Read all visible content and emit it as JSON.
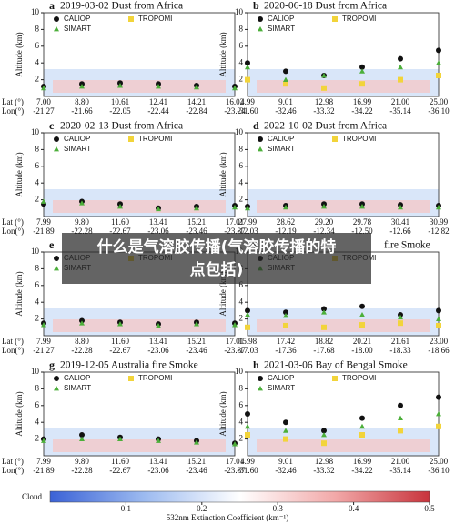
{
  "chart_data": [
    {
      "type": "scatter",
      "letter": "a",
      "title": "2019-03-02 Dust from Africa",
      "y_label": "Altitude (km)",
      "lat": [
        "7.00",
        "8.80",
        "10.61",
        "12.41",
        "14.21",
        "16.02"
      ],
      "lon": [
        "-21.27",
        "-21.66",
        "-22.05",
        "-22.44",
        "-22.84",
        "-23.24"
      ],
      "ylim": [
        0,
        10
      ],
      "yticks": [
        2,
        4,
        6,
        8,
        10
      ],
      "series": [
        {
          "name": "CALIOP",
          "color": "#111111",
          "marker": "circle",
          "values": [
            1.2,
            1.5,
            1.6,
            1.5,
            1.3,
            1.2
          ]
        },
        {
          "name": "TROPOMI",
          "color": "#f2d43a",
          "marker": "square",
          "values": [
            null,
            null,
            null,
            null,
            null,
            null
          ]
        },
        {
          "name": "SIMART",
          "color": "#4caf3a",
          "marker": "triangle",
          "values": [
            1.0,
            1.2,
            1.3,
            1.2,
            1.1,
            1.0
          ]
        }
      ]
    },
    {
      "type": "scatter",
      "letter": "b",
      "title": "2020-06-18 Dust from Africa",
      "y_label": "Altitude (km)",
      "lat": [
        "4.99",
        "9.01",
        "12.98",
        "16.99",
        "21.00",
        "25.00"
      ],
      "lon": [
        "-31.60",
        "-32.46",
        "-33.32",
        "-34.22",
        "-35.14",
        "-36.10"
      ],
      "ylim": [
        0,
        10
      ],
      "yticks": [
        2,
        4,
        6,
        8,
        10
      ],
      "series": [
        {
          "name": "CALIOP",
          "color": "#111111",
          "marker": "circle",
          "values": [
            4.0,
            3.0,
            2.5,
            3.5,
            4.5,
            5.5
          ]
        },
        {
          "name": "TROPOMI",
          "color": "#f2d43a",
          "marker": "square",
          "values": [
            2.0,
            1.5,
            1.0,
            1.5,
            2.0,
            2.5
          ]
        },
        {
          "name": "SIMART",
          "color": "#4caf3a",
          "marker": "triangle",
          "values": [
            3.5,
            2.0,
            2.5,
            3.0,
            3.5,
            4.0
          ]
        }
      ]
    },
    {
      "type": "scatter",
      "letter": "c",
      "title": "2020-02-13 Dust from Africa",
      "y_label": "Altitude (km)",
      "lat": [
        "7.99",
        "9.80",
        "11.60",
        "13.41",
        "15.21",
        "17.01"
      ],
      "lon": [
        "-21.89",
        "-22.28",
        "-22.67",
        "-23.06",
        "-23.46",
        "-23.87"
      ],
      "ylim": [
        0,
        10
      ],
      "yticks": [
        2,
        4,
        6,
        8,
        10
      ],
      "series": [
        {
          "name": "CALIOP",
          "color": "#111111",
          "marker": "circle",
          "values": [
            1.5,
            1.8,
            1.5,
            1.0,
            1.2,
            1.3
          ]
        },
        {
          "name": "TROPOMI",
          "color": "#f2d43a",
          "marker": "square",
          "values": [
            null,
            null,
            null,
            null,
            null,
            null
          ]
        },
        {
          "name": "SIMART",
          "color": "#4caf3a",
          "marker": "triangle",
          "values": [
            1.8,
            1.6,
            1.2,
            0.9,
            1.0,
            1.1
          ]
        }
      ]
    },
    {
      "type": "scatter",
      "letter": "d",
      "title": "2022-10-02 Dust from Africa",
      "y_label": "Altitude (km)",
      "lat": [
        "27.99",
        "28.62",
        "29.20",
        "29.78",
        "30.41",
        "30.99"
      ],
      "lon": [
        "-12.03",
        "-12.19",
        "-12.34",
        "-12.50",
        "-12.66",
        "-12.82"
      ],
      "ylim": [
        0,
        10
      ],
      "yticks": [
        2,
        4,
        6,
        8,
        10
      ],
      "series": [
        {
          "name": "CALIOP",
          "color": "#111111",
          "marker": "circle",
          "values": [
            1.2,
            1.3,
            1.5,
            1.5,
            1.4,
            1.3
          ]
        },
        {
          "name": "TROPOMI",
          "color": "#f2d43a",
          "marker": "square",
          "values": [
            null,
            null,
            null,
            null,
            null,
            null
          ]
        },
        {
          "name": "SIMART",
          "color": "#4caf3a",
          "marker": "triangle",
          "values": [
            1.0,
            1.1,
            1.2,
            1.2,
            1.1,
            1.1
          ]
        }
      ]
    },
    {
      "type": "scatter",
      "letter": "e",
      "y_label": "Altitude (km)",
      "lat": [
        "7.99",
        "8.80",
        "11.60",
        "13.41",
        "15.21",
        "17.01"
      ],
      "lon": [
        "-21.27",
        "-22.28",
        "-22.67",
        "-23.06",
        "-23.46",
        "-23.87"
      ],
      "ylim": [
        0,
        10
      ],
      "yticks": [
        2,
        4,
        6,
        8,
        10
      ],
      "series": [
        {
          "name": "CALIOP",
          "color": "#111111",
          "marker": "circle",
          "values": [
            1.5,
            1.8,
            1.6,
            1.4,
            1.6,
            1.5
          ]
        },
        {
          "name": "TROPOMI",
          "color": "#f2d43a",
          "marker": "square",
          "values": [
            null,
            null,
            null,
            null,
            null,
            null
          ]
        },
        {
          "name": "SIMART",
          "color": "#4caf3a",
          "marker": "triangle",
          "values": [
            1.3,
            1.5,
            1.4,
            1.2,
            1.4,
            1.3
          ]
        }
      ]
    },
    {
      "type": "scatter",
      "letter": "f",
      "title": "fire Smoke",
      "y_label": "Altitude (km)",
      "lat": [
        "15.98",
        "17.42",
        "18.82",
        "20.21",
        "21.61",
        "23.00"
      ],
      "lon": [
        "-17.03",
        "-17.36",
        "-17.68",
        "-18.00",
        "-18.33",
        "-18.66"
      ],
      "ylim": [
        0,
        10
      ],
      "yticks": [
        2,
        4,
        6,
        8,
        10
      ],
      "series": [
        {
          "name": "CALIOP",
          "color": "#111111",
          "marker": "circle",
          "values": [
            3.0,
            2.8,
            3.2,
            3.5,
            2.5,
            3.0
          ]
        },
        {
          "name": "TROPOMI",
          "color": "#f2d43a",
          "marker": "square",
          "values": [
            1.0,
            1.2,
            1.0,
            1.3,
            1.5,
            1.2
          ]
        },
        {
          "name": "SIMART",
          "color": "#4caf3a",
          "marker": "triangle",
          "values": [
            2.5,
            2.4,
            2.8,
            2.5,
            2.2,
            2.0
          ]
        }
      ]
    },
    {
      "type": "scatter",
      "letter": "g",
      "title": "2019-12-05 Australia fire Smoke",
      "y_label": "Altitude (km)",
      "lat": [
        "7.99",
        "9.80",
        "11.60",
        "13.41",
        "15.21",
        "17.01"
      ],
      "lon": [
        "-21.89",
        "-22.28",
        "-22.67",
        "-23.06",
        "-23.46",
        "-23.87"
      ],
      "ylim": [
        0,
        10
      ],
      "yticks": [
        2,
        4,
        6,
        8,
        10
      ],
      "series": [
        {
          "name": "CALIOP",
          "color": "#111111",
          "marker": "circle",
          "values": [
            2.0,
            2.5,
            2.2,
            2.0,
            1.8,
            1.5
          ]
        },
        {
          "name": "TROPOMI",
          "color": "#f2d43a",
          "marker": "square",
          "values": [
            null,
            null,
            null,
            null,
            null,
            null
          ]
        },
        {
          "name": "SIMART",
          "color": "#4caf3a",
          "marker": "triangle",
          "values": [
            1.8,
            2.0,
            2.0,
            1.8,
            1.6,
            1.4
          ]
        }
      ]
    },
    {
      "type": "scatter",
      "letter": "h",
      "title": "2021-03-06 Bay of Bengal Smoke",
      "y_label": "Altitude (km)",
      "lat": [
        "4.99",
        "9.01",
        "12.98",
        "16.99",
        "21.00",
        "25.00"
      ],
      "lon": [
        "-31.60",
        "-32.46",
        "-33.32",
        "-34.22",
        "-35.14",
        "-36.10"
      ],
      "ylim": [
        0,
        10
      ],
      "yticks": [
        2,
        4,
        6,
        8,
        10
      ],
      "series": [
        {
          "name": "CALIOP",
          "color": "#111111",
          "marker": "circle",
          "values": [
            5.0,
            4.0,
            3.0,
            4.5,
            6.0,
            7.0
          ]
        },
        {
          "name": "TROPOMI",
          "color": "#f2d43a",
          "marker": "square",
          "values": [
            2.5,
            2.0,
            1.5,
            2.5,
            3.0,
            3.5
          ]
        },
        {
          "name": "SIMART",
          "color": "#4caf3a",
          "marker": "triangle",
          "values": [
            3.5,
            3.0,
            2.5,
            3.5,
            4.5,
            5.0
          ]
        }
      ]
    }
  ],
  "lat_label": "Lat (°)",
  "lon_label": "Lon(°)",
  "colorbar": {
    "cloud_label": "Cloud",
    "label": "532nm Extinction Coefficient (km⁻¹)",
    "lim": [
      0,
      0.5
    ],
    "ticks": [
      0.1,
      0.2,
      0.3,
      0.4,
      0.5
    ],
    "colors": [
      "#3b62d6",
      "#9dbbf0",
      "#ffffff",
      "#f2a9a9",
      "#c8343c"
    ]
  },
  "overlay": {
    "line1": "什么是气溶胶传播(气溶胶传播的特",
    "line2": "点包括)"
  }
}
